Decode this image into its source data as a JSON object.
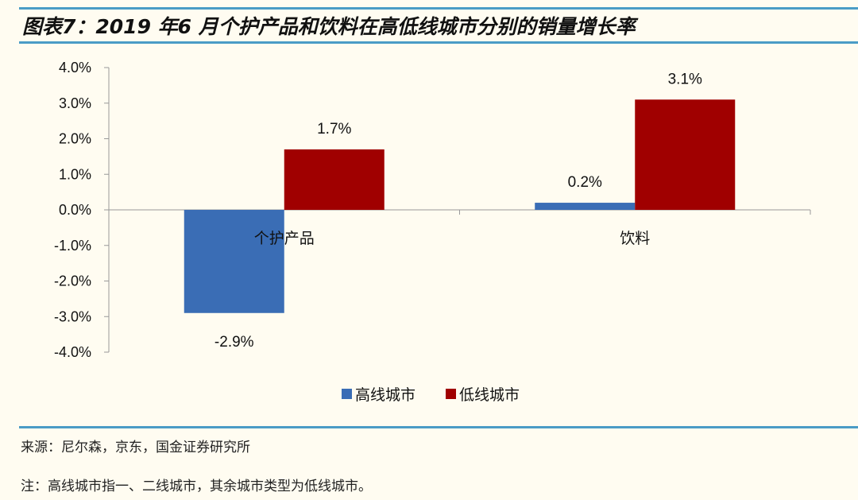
{
  "title": "图表7：2019 年6 月个护产品和饮料在高低线城市分别的销量增长率",
  "source": "来源：尼尔森，京东，国金证券研究所",
  "note": "注：高线城市指一、二线城市，其余城市类型为低线城市。",
  "colors": {
    "rule": "#4a9cc6",
    "background": "#fffcf1"
  },
  "chart_data": {
    "type": "bar",
    "categories": [
      "个护产品",
      "饮料"
    ],
    "series": [
      {
        "name": "高线城市",
        "values": [
          -2.9,
          0.2
        ],
        "labels": [
          "-2.9%",
          "0.2%"
        ],
        "color": "#3a6db5"
      },
      {
        "name": "低线城市",
        "values": [
          1.7,
          3.1
        ],
        "labels": [
          "1.7%",
          "3.1%"
        ],
        "color": "#a00000"
      }
    ],
    "ylim": [
      -4,
      4
    ],
    "yticks": [
      4,
      3,
      2,
      1,
      0,
      -1,
      -2,
      -3,
      -4
    ],
    "ytick_labels": [
      "4.0%",
      "3.0%",
      "2.0%",
      "1.0%",
      "0.0%",
      "-1.0%",
      "-2.0%",
      "-3.0%",
      "-4.0%"
    ],
    "grid": false,
    "legend": "bottom"
  }
}
